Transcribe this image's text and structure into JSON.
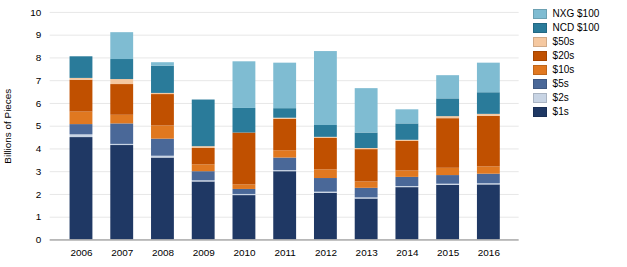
{
  "chart_data": {
    "type": "bar",
    "stacked": true,
    "categories": [
      "2006",
      "2007",
      "2008",
      "2009",
      "2010",
      "2011",
      "2012",
      "2013",
      "2014",
      "2015",
      "2016"
    ],
    "series": [
      {
        "name": "$1s",
        "color": "#1f3864",
        "values": [
          4.5,
          4.15,
          3.6,
          2.55,
          1.95,
          3.0,
          2.05,
          1.8,
          2.3,
          2.4,
          2.42
        ]
      },
      {
        "name": "$2s",
        "color": "#c8d4e4",
        "values": [
          0.12,
          0.05,
          0.08,
          0.05,
          0.05,
          0.05,
          0.05,
          0.05,
          0.05,
          0.05,
          0.05
        ]
      },
      {
        "name": "$5s",
        "color": "#4a6898",
        "values": [
          0.45,
          0.9,
          0.75,
          0.4,
          0.22,
          0.55,
          0.6,
          0.42,
          0.4,
          0.38,
          0.42
        ]
      },
      {
        "name": "$10s",
        "color": "#e07820",
        "values": [
          0.55,
          0.38,
          0.58,
          0.3,
          0.2,
          0.32,
          0.38,
          0.28,
          0.28,
          0.32,
          0.32
        ]
      },
      {
        "name": "$20s",
        "color": "#c05000",
        "values": [
          1.4,
          1.35,
          1.38,
          0.72,
          2.28,
          1.38,
          1.38,
          1.42,
          1.3,
          2.18,
          2.22
        ]
      },
      {
        "name": "$50s",
        "color": "#f5c8a0",
        "values": [
          0.08,
          0.22,
          0.05,
          0.08,
          0.0,
          0.05,
          0.05,
          0.05,
          0.05,
          0.09,
          0.09
        ]
      },
      {
        "name": "NCD $100",
        "color": "#2a7b9a",
        "values": [
          0.95,
          0.88,
          1.2,
          2.05,
          1.08,
          0.42,
          0.52,
          0.68,
          0.72,
          0.78,
          0.95
        ]
      },
      {
        "name": "NXG $100",
        "color": "#7fbcd2",
        "values": [
          0.0,
          1.18,
          0.15,
          0.0,
          2.05,
          2.0,
          3.25,
          1.95,
          0.62,
          1.02,
          1.3
        ]
      }
    ],
    "ylabel": "Billions of Pieces",
    "ylim": [
      0,
      10
    ],
    "yticks": [
      0,
      1,
      2,
      3,
      4,
      5,
      6,
      7,
      8,
      9,
      10
    ],
    "grid": true,
    "legend": "upper right"
  }
}
